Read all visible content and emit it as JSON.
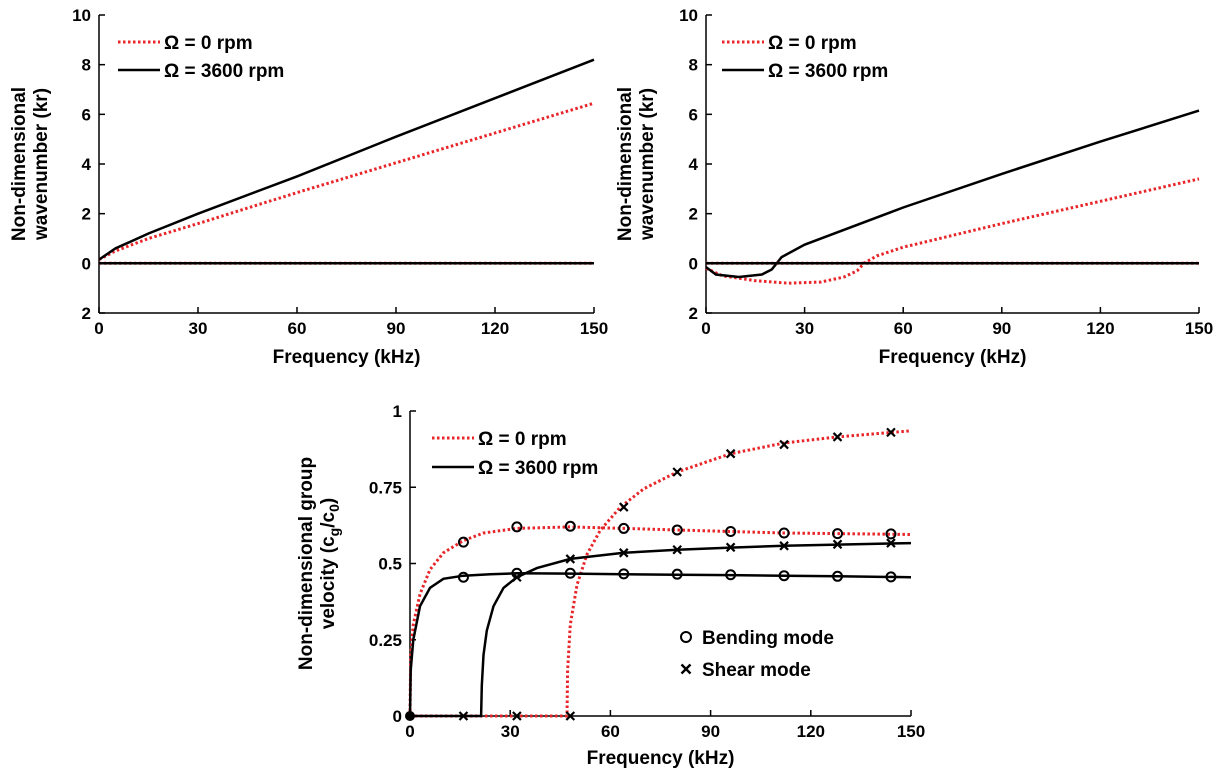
{
  "chart_data": [
    {
      "type": "line",
      "xlabel": "Frequency (kHz)",
      "ylabel": [
        "Non-dimensional",
        "wavenumber (kr)"
      ],
      "xlim": [
        0,
        150
      ],
      "ylim": [
        -2,
        10
      ],
      "xticks": [
        "0",
        "30",
        "60",
        "90",
        "120",
        "150"
      ],
      "yticks": [
        {
          "value": 10,
          "label": "10"
        },
        {
          "value": 8,
          "label": "8"
        },
        {
          "value": 6,
          "label": "6"
        },
        {
          "value": 4,
          "label": "4"
        },
        {
          "value": 2,
          "label": "2"
        },
        {
          "value": 0,
          "label": "0"
        },
        {
          "value": -2,
          "label": "2"
        }
      ],
      "legend_position": "top-left",
      "series": [
        {
          "name": "Ω = 0 rpm",
          "color": "#e8262a",
          "style": "dotted",
          "x": [
            0,
            5,
            15,
            30,
            60,
            90,
            120,
            150
          ],
          "y": [
            0.15,
            0.5,
            1.0,
            1.6,
            2.85,
            4.05,
            5.25,
            6.45
          ]
        },
        {
          "name": "Ω = 3600 rpm",
          "color": "#000000",
          "style": "solid",
          "x": [
            0,
            5,
            15,
            30,
            60,
            90,
            120,
            150
          ],
          "y": [
            0.15,
            0.6,
            1.2,
            2.0,
            3.5,
            5.1,
            6.65,
            8.2
          ]
        },
        {
          "name": "",
          "color": "#e8262a",
          "style": "dotted",
          "x": [
            0,
            150
          ],
          "y": [
            0,
            0
          ]
        },
        {
          "name": "",
          "color": "#000000",
          "style": "solid",
          "x": [
            0,
            150
          ],
          "y": [
            0,
            0
          ]
        }
      ]
    },
    {
      "type": "line",
      "xlabel": "Frequency (kHz)",
      "ylabel": [
        "Non-dimensional",
        "wavenumber (kr)"
      ],
      "xlim": [
        0,
        150
      ],
      "ylim": [
        -2,
        10
      ],
      "xticks": [
        "0",
        "30",
        "60",
        "90",
        "120",
        "150"
      ],
      "yticks": [
        {
          "value": 10,
          "label": "10"
        },
        {
          "value": 8,
          "label": "8"
        },
        {
          "value": 6,
          "label": "6"
        },
        {
          "value": 4,
          "label": "4"
        },
        {
          "value": 2,
          "label": "2"
        },
        {
          "value": 0,
          "label": "0"
        },
        {
          "value": -2,
          "label": "2"
        }
      ],
      "legend_position": "top-left",
      "series": [
        {
          "name": "Ω = 0 rpm",
          "color": "#e8262a",
          "style": "dotted",
          "x": [
            0,
            5,
            15,
            25,
            35,
            42,
            46,
            48,
            52,
            60,
            90,
            120,
            150
          ],
          "y": [
            -0.2,
            -0.5,
            -0.7,
            -0.8,
            -0.75,
            -0.55,
            -0.3,
            0.0,
            0.3,
            0.65,
            1.6,
            2.5,
            3.4
          ]
        },
        {
          "name": "Ω = 3600 rpm",
          "color": "#000000",
          "style": "solid",
          "x": [
            0,
            3,
            10,
            17,
            20,
            21.5,
            23,
            30,
            60,
            90,
            120,
            150
          ],
          "y": [
            -0.15,
            -0.45,
            -0.55,
            -0.45,
            -0.25,
            0.0,
            0.25,
            0.75,
            2.25,
            3.6,
            4.9,
            6.15
          ]
        },
        {
          "name": "",
          "color": "#e8262a",
          "style": "dotted",
          "x": [
            0,
            150
          ],
          "y": [
            0,
            0
          ]
        },
        {
          "name": "",
          "color": "#000000",
          "style": "solid",
          "x": [
            0,
            150
          ],
          "y": [
            0,
            0
          ]
        }
      ]
    },
    {
      "type": "line",
      "xlabel": "Frequency (kHz)",
      "ylabel": [
        "Non-dimensional group",
        "velocity (c_g/c_0)"
      ],
      "xlim": [
        0,
        150
      ],
      "ylim": [
        0,
        1
      ],
      "xticks": [
        "0",
        "30",
        "60",
        "90",
        "120",
        "150"
      ],
      "yticks": [
        {
          "value": 0,
          "label": "0"
        },
        {
          "value": 0.25,
          "label": "0.25"
        },
        {
          "value": 0.5,
          "label": "0.5"
        },
        {
          "value": 0.75,
          "label": "0.75"
        },
        {
          "value": 1,
          "label": "1"
        }
      ],
      "legend_position": "top-left",
      "series": [
        {
          "name": "Ω = 0 rpm",
          "color": "#e8262a",
          "style": "dotted",
          "x": [
            0,
            0.2,
            1,
            3,
            6,
            10,
            16,
            22,
            32,
            48,
            64,
            80,
            96,
            112,
            128,
            150
          ],
          "y": [
            0,
            0.2,
            0.3,
            0.4,
            0.48,
            0.535,
            0.575,
            0.6,
            0.615,
            0.62,
            0.615,
            0.61,
            0.605,
            0.6,
            0.598,
            0.595
          ]
        },
        {
          "name": "",
          "color": "#e8262a",
          "style": "dotted",
          "x": [
            0,
            47,
            47.2,
            48,
            50,
            53,
            57,
            63,
            70,
            80,
            96,
            112,
            128,
            150
          ],
          "y": [
            0,
            0,
            0.15,
            0.3,
            0.43,
            0.53,
            0.61,
            0.685,
            0.745,
            0.8,
            0.86,
            0.895,
            0.915,
            0.935
          ]
        },
        {
          "name": "Ω = 3600 rpm",
          "color": "#000000",
          "style": "solid",
          "x": [
            0,
            0.2,
            1,
            3,
            6,
            10,
            16,
            24,
            32,
            48,
            64,
            80,
            96,
            112,
            128,
            150
          ],
          "y": [
            0,
            0.15,
            0.25,
            0.36,
            0.42,
            0.45,
            0.46,
            0.465,
            0.468,
            0.467,
            0.465,
            0.463,
            0.462,
            0.46,
            0.458,
            0.455
          ]
        },
        {
          "name": "",
          "color": "#000000",
          "style": "solid",
          "x": [
            0,
            21.3,
            21.5,
            22,
            23,
            25,
            28,
            32,
            38,
            48,
            64,
            80,
            96,
            112,
            128,
            150
          ],
          "y": [
            0,
            0,
            0.1,
            0.2,
            0.28,
            0.36,
            0.42,
            0.455,
            0.485,
            0.515,
            0.535,
            0.545,
            0.552,
            0.558,
            0.562,
            0.567
          ]
        }
      ],
      "markers": {
        "bending_mode": {
          "label": "Bending mode",
          "symbol": "o",
          "x": [
            16,
            16,
            32,
            32,
            48,
            48,
            64,
            64,
            80,
            80,
            96,
            96,
            112,
            112,
            128,
            128,
            144,
            144
          ],
          "y": [
            0.57,
            0.455,
            0.62,
            0.468,
            0.622,
            0.468,
            0.615,
            0.466,
            0.61,
            0.465,
            0.605,
            0.463,
            0.6,
            0.46,
            0.598,
            0.458,
            0.597,
            0.456
          ]
        },
        "shear_mode": {
          "label": "Shear mode",
          "symbol": "x",
          "x": [
            16,
            32,
            32,
            48,
            48,
            64,
            64,
            80,
            80,
            96,
            96,
            112,
            112,
            128,
            128,
            144,
            144
          ],
          "y": [
            0,
            0,
            0.455,
            0,
            0.515,
            0.685,
            0.535,
            0.8,
            0.545,
            0.86,
            0.553,
            0.89,
            0.558,
            0.915,
            0.563,
            0.93,
            0.567
          ]
        },
        "origin_marker": {
          "x": 0,
          "y": 0
        }
      },
      "marker_legend_position": "lower-right"
    }
  ]
}
